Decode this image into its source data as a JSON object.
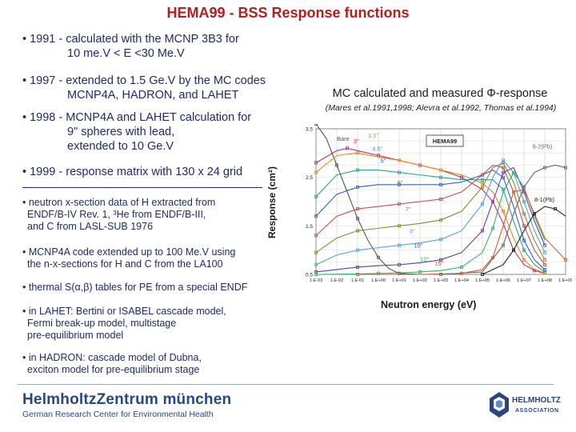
{
  "title": "HEMA99 - BSS Response functions",
  "bullets": [
    {
      "lines": [
        "• 1991 - calculated with the MCNP 3B3 for",
        "10 me.V < E <30 Me.V"
      ]
    },
    {
      "lines": [
        "• 1997 - extended to 1.5 Ge.V by the MC codes",
        "MCNP4A, HADRON, and LAHET"
      ]
    },
    {
      "lines": [
        "• 1998 - MCNP4A and LAHET calculation for",
        "9\" spheres with lead,",
        "extended to 10 Ge.V"
      ]
    },
    {
      "lines": [
        "• 1999 - response matrix with 130 x 24 grid"
      ]
    }
  ],
  "small_bullets": [
    {
      "lines": [
        "• neutron x-section data of H extracted from",
        "ENDF/B-IV Rev. 1, ³He from ENDF/B-III,",
        "and C from LASL-SUB 1976"
      ]
    },
    {
      "lines": [
        "• MCNP4A code extended up to 100 Me.V using",
        "the n-x-sections for H and C from the LA100"
      ]
    },
    {
      "lines": [
        "• thermal S(α,β) tables for PE from a special ENDF"
      ]
    },
    {
      "lines": [
        "• in LAHET: Bertini or ISABEL cascade model,",
        "Fermi break-up model, multistage",
        "pre-equilibrium model"
      ]
    },
    {
      "lines": [
        "• in HADRON: cascade model of  Dubna,",
        "exciton model for pre-equilibrium stage"
      ]
    }
  ],
  "figure": {
    "heading": "MC calculated and measured Φ-response",
    "reference": "(Mares et al.1991,1998; Alevra et al.1992, Thomas et al.1994)",
    "ylabel": "Response (cm²)",
    "xlabel": "Neutron energy (eV)",
    "legend_box": "HEMA99"
  },
  "chart_data": {
    "type": "line",
    "title": "MC calculated and measured Φ-response",
    "xlabel": "Neutron energy (eV)",
    "ylabel": "Response (cm²)",
    "x_log_exponents": [
      -3,
      -2,
      -1,
      0,
      1,
      2,
      3,
      4,
      5,
      6,
      7,
      8,
      9
    ],
    "x_tick_labels": [
      "1.E-03",
      "1.E-02",
      "1.E-01",
      "1.E+00",
      "1.E+01",
      "1.E+02",
      "1.E+03",
      "1.E+04",
      "1.E+05",
      "1.E+06",
      "1.E+07",
      "1.E+08",
      "1.E+09"
    ],
    "y_ticks": [
      0.5,
      1.5,
      2.5,
      3.5
    ],
    "y_tick_labels": [
      "0.5",
      "1.5",
      "2.5",
      "3.5"
    ],
    "ylim": [
      0.5,
      3.5
    ],
    "grid": true,
    "series": [
      {
        "name": "Bare",
        "color": "#555555",
        "points": [
          [
            -3,
            3.6
          ],
          [
            -2.5,
            3.3
          ],
          [
            -2,
            2.75
          ],
          [
            -1.5,
            2.2
          ],
          [
            -1,
            1.65
          ],
          [
            -0.5,
            1.2
          ],
          [
            0,
            0.85
          ],
          [
            0.5,
            0.62
          ],
          [
            1,
            0.52
          ],
          [
            2,
            0.5
          ]
        ]
      },
      {
        "name": "3\"",
        "color": "#c03060",
        "points": [
          [
            -3,
            2.8
          ],
          [
            -2,
            3.05
          ],
          [
            -1.5,
            3.1
          ],
          [
            -1,
            3.05
          ],
          [
            0,
            2.95
          ],
          [
            1,
            2.85
          ],
          [
            2,
            2.75
          ],
          [
            3,
            2.65
          ],
          [
            4,
            2.5
          ],
          [
            5,
            2.25
          ],
          [
            5.5,
            2.0
          ],
          [
            6,
            1.55
          ],
          [
            6.5,
            1.0
          ],
          [
            7,
            0.7
          ],
          [
            7.5,
            0.58
          ],
          [
            8,
            0.52
          ]
        ]
      },
      {
        "name": "3.5\"",
        "color": "#e08a1e",
        "points": [
          [
            -3,
            2.6
          ],
          [
            -2,
            2.95
          ],
          [
            -1,
            3.0
          ],
          [
            0,
            2.92
          ],
          [
            1,
            2.85
          ],
          [
            2,
            2.75
          ],
          [
            3,
            2.65
          ],
          [
            4,
            2.55
          ],
          [
            5,
            2.38
          ],
          [
            5.5,
            2.2
          ],
          [
            6,
            1.8
          ],
          [
            6.5,
            1.25
          ],
          [
            7,
            0.8
          ],
          [
            7.5,
            0.6
          ],
          [
            8,
            0.53
          ]
        ]
      },
      {
        "name": "4.5\"",
        "color": "#2aa090",
        "points": [
          [
            -3,
            2.1
          ],
          [
            -2,
            2.55
          ],
          [
            -1,
            2.65
          ],
          [
            0,
            2.65
          ],
          [
            1,
            2.6
          ],
          [
            2,
            2.55
          ],
          [
            3,
            2.5
          ],
          [
            4,
            2.45
          ],
          [
            5,
            2.45
          ],
          [
            5.5,
            2.45
          ],
          [
            6,
            2.25
          ],
          [
            6.5,
            1.6
          ],
          [
            7,
            1.0
          ],
          [
            7.5,
            0.7
          ],
          [
            8,
            0.55
          ]
        ]
      },
      {
        "name": "5\"",
        "color": "#3060c8",
        "points": [
          [
            -3,
            1.7
          ],
          [
            -2,
            2.15
          ],
          [
            -1,
            2.3
          ],
          [
            0,
            2.35
          ],
          [
            1,
            2.35
          ],
          [
            2,
            2.35
          ],
          [
            3,
            2.35
          ],
          [
            4,
            2.4
          ],
          [
            5,
            2.55
          ],
          [
            5.5,
            2.65
          ],
          [
            6,
            2.5
          ],
          [
            6.5,
            1.9
          ],
          [
            7,
            1.2
          ],
          [
            7.5,
            0.8
          ],
          [
            8,
            0.6
          ]
        ]
      },
      {
        "name": "6\"",
        "color": "#c05050",
        "points": [
          [
            -3,
            1.3
          ],
          [
            -2,
            1.7
          ],
          [
            -1,
            1.85
          ],
          [
            0,
            1.9
          ],
          [
            1,
            1.95
          ],
          [
            2,
            2.0
          ],
          [
            3,
            2.05
          ],
          [
            4,
            2.2
          ],
          [
            5,
            2.55
          ],
          [
            5.5,
            2.75
          ],
          [
            6,
            2.7
          ],
          [
            6.5,
            2.2
          ],
          [
            7,
            1.5
          ],
          [
            7.5,
            1.0
          ],
          [
            8,
            0.7
          ]
        ]
      },
      {
        "name": "7\"",
        "color": "#8a8a30",
        "points": [
          [
            -3,
            0.95
          ],
          [
            -2,
            1.25
          ],
          [
            -1,
            1.4
          ],
          [
            0,
            1.45
          ],
          [
            1,
            1.5
          ],
          [
            2,
            1.55
          ],
          [
            3,
            1.62
          ],
          [
            4,
            1.8
          ],
          [
            5,
            2.3
          ],
          [
            5.5,
            2.7
          ],
          [
            6,
            2.8
          ],
          [
            6.5,
            2.4
          ],
          [
            7,
            1.75
          ],
          [
            7.5,
            1.2
          ],
          [
            8,
            0.8
          ]
        ]
      },
      {
        "name": "8\"",
        "color": "#50a0e0",
        "points": [
          [
            -3,
            0.7
          ],
          [
            -2,
            0.9
          ],
          [
            -1,
            1.0
          ],
          [
            0,
            1.05
          ],
          [
            1,
            1.1
          ],
          [
            2,
            1.15
          ],
          [
            3,
            1.22
          ],
          [
            4,
            1.4
          ],
          [
            5,
            1.95
          ],
          [
            5.5,
            2.5
          ],
          [
            6,
            2.85
          ],
          [
            6.5,
            2.6
          ],
          [
            7,
            2.0
          ],
          [
            7.5,
            1.4
          ],
          [
            8,
            0.95
          ]
        ]
      },
      {
        "name": "10\"",
        "color": "#6040a0",
        "points": [
          [
            -3,
            0.55
          ],
          [
            -2,
            0.6
          ],
          [
            -1,
            0.65
          ],
          [
            0,
            0.68
          ],
          [
            1,
            0.7
          ],
          [
            2,
            0.74
          ],
          [
            3,
            0.8
          ],
          [
            4,
            0.95
          ],
          [
            5,
            1.4
          ],
          [
            5.5,
            2.0
          ],
          [
            6,
            2.6
          ],
          [
            6.5,
            2.7
          ],
          [
            7,
            2.2
          ],
          [
            7.5,
            1.6
          ],
          [
            8,
            1.1
          ]
        ]
      },
      {
        "name": "12\"",
        "color": "#30b070",
        "points": [
          [
            -3,
            0.5
          ],
          [
            -1,
            0.51
          ],
          [
            0,
            0.52
          ],
          [
            1,
            0.53
          ],
          [
            2,
            0.55
          ],
          [
            3,
            0.58
          ],
          [
            4,
            0.65
          ],
          [
            5,
            0.95
          ],
          [
            5.5,
            1.45
          ],
          [
            6,
            2.2
          ],
          [
            6.5,
            2.6
          ],
          [
            7,
            2.3
          ],
          [
            7.5,
            1.7
          ],
          [
            8,
            1.2
          ]
        ]
      },
      {
        "name": "15\"",
        "color": "#d06020",
        "points": [
          [
            -1,
            0.5
          ],
          [
            2,
            0.5
          ],
          [
            4,
            0.52
          ],
          [
            5,
            0.6
          ],
          [
            5.5,
            0.85
          ],
          [
            6,
            1.5
          ],
          [
            6.5,
            2.2
          ],
          [
            7,
            2.25
          ],
          [
            7.5,
            1.75
          ],
          [
            8,
            1.25
          ],
          [
            9,
            0.8
          ]
        ]
      },
      {
        "name": "9-2(Pb)",
        "color": "#6a6a6a",
        "points": [
          [
            3,
            0.5
          ],
          [
            5,
            0.55
          ],
          [
            6,
            1.1
          ],
          [
            6.5,
            1.75
          ],
          [
            7,
            2.3
          ],
          [
            7.5,
            2.6
          ],
          [
            8,
            2.7
          ],
          [
            8.5,
            2.75
          ],
          [
            9,
            2.7
          ]
        ]
      },
      {
        "name": "8-1(Pb)",
        "color": "#222222",
        "points": [
          [
            5,
            0.5
          ],
          [
            6,
            0.7
          ],
          [
            6.5,
            1.0
          ],
          [
            7,
            1.4
          ],
          [
            7.5,
            1.75
          ],
          [
            8,
            1.9
          ],
          [
            8.5,
            1.85
          ],
          [
            9,
            1.7
          ]
        ]
      }
    ]
  },
  "footer": {
    "logo_main": "HelmholtzZentrum münchen",
    "logo_sub": "German Research Center for Environmental Health",
    "logo_right_line1": "HELMHOLTZ",
    "logo_right_line2": "ASSOCIATION"
  }
}
